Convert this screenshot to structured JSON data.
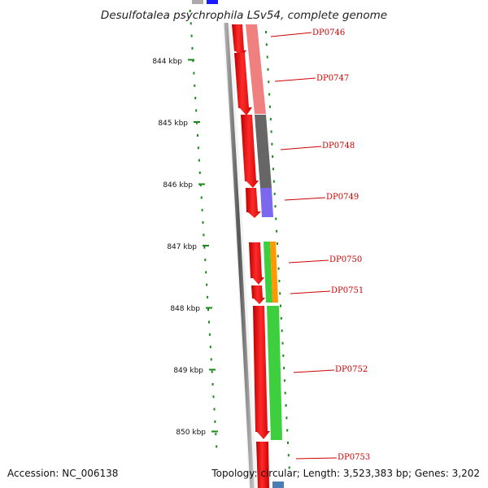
{
  "title": "Desulfotalea psychrophila LSv54, complete genome",
  "footer": {
    "accession": "Accession: NC_006138",
    "summary": "Topology: circular; Length: 3,523,383 bp; Genes: 3,202"
  },
  "ruler": {
    "unit": "kbp",
    "labels": [
      "844 kbp",
      "845 kbp",
      "846 kbp",
      "847 kbp",
      "848 kbp",
      "849 kbp",
      "850 kbp"
    ]
  },
  "genes": [
    {
      "name": "DP0746"
    },
    {
      "name": "DP0747"
    },
    {
      "name": "DP0748"
    },
    {
      "name": "DP0749"
    },
    {
      "name": "DP0750"
    },
    {
      "name": "DP0751"
    },
    {
      "name": "DP0752"
    },
    {
      "name": "DP0753"
    }
  ],
  "colors": {
    "strand_arrow": "#ee1111",
    "backbone": "#888888",
    "tick": "#1a8a1a",
    "label": "#cc0000",
    "cog_pink": "#f08080",
    "cog_dark": "#666666",
    "cog_purple": "#7b68ee",
    "cog_green": "#3ecf3e",
    "cog_orange": "#ff9900",
    "cog_blue": "#1a1aff"
  }
}
